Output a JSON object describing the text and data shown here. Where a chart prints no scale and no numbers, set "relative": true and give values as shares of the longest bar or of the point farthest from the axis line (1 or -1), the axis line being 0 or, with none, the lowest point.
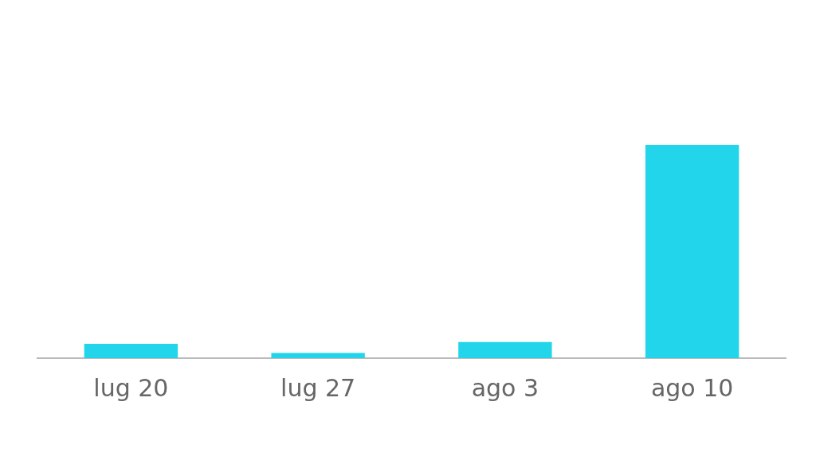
{
  "chart_data": {
    "type": "bar",
    "relative": true,
    "categories": [
      "lug 20",
      "lug 27",
      "ago 3",
      "ago 10"
    ],
    "values": [
      0.067,
      0.024,
      0.076,
      1
    ],
    "color": "#22d5ea",
    "legend": false,
    "tick_labels": "x"
  }
}
